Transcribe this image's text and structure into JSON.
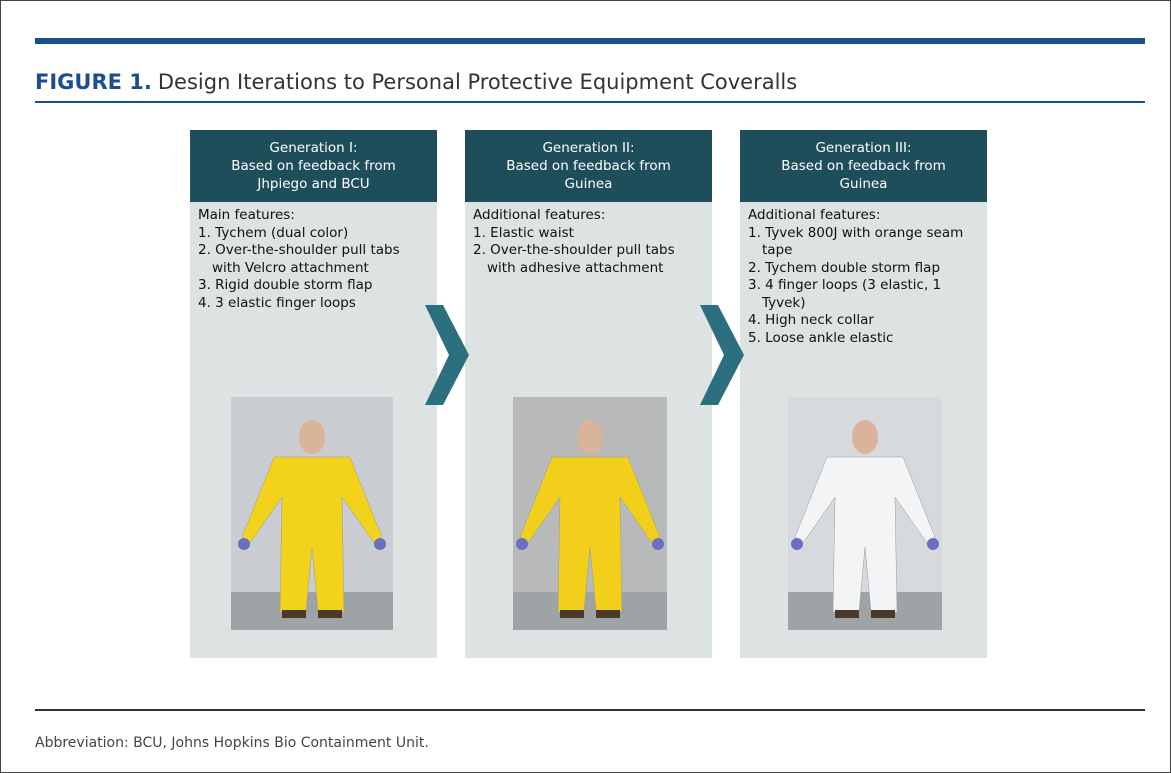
{
  "figure": {
    "label": "FIGURE 1.",
    "title": "Design Iterations to Personal Protective Equipment Coveralls"
  },
  "panels": [
    {
      "header": [
        "Generation I:",
        "Based on feedback from",
        "Jhpiego and BCU"
      ],
      "features_title": "Main features:",
      "items": [
        "1. Tychem (dual color)",
        "2. Over-the-shoulder pull tabs with Velcro attachment",
        "3. Rigid double storm flap",
        "4. 3 elastic finger loops"
      ]
    },
    {
      "header": [
        "Generation II:",
        "Based on feedback from",
        "Guinea"
      ],
      "features_title": "Additional features:",
      "items": [
        "1. Elastic waist",
        "2. Over-the-shoulder pull tabs with adhesive attachment"
      ]
    },
    {
      "header": [
        "Generation III:",
        "Based on feedback from",
        "Guinea"
      ],
      "features_title": "Additional features:",
      "items": [
        "1. Tyvek 800J with orange seam tape",
        "2. Tychem double storm flap",
        "3. 4 finger loops (3 elastic, 1 Tyvek)",
        "4. High neck collar",
        "5. Loose ankle elastic"
      ]
    }
  ],
  "footer": "Abbreviation: BCU, Johns Hopkins Bio Containment Unit."
}
